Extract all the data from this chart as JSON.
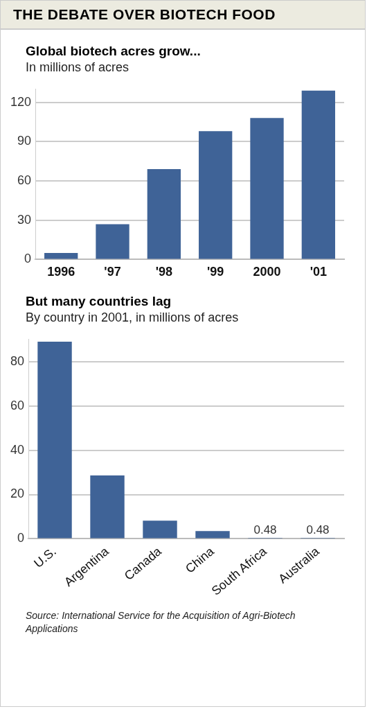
{
  "chart_data": [
    {
      "type": "bar",
      "title": "Global biotech acres grow...",
      "subtitle": "In millions of acres",
      "annotations": [
        "THE DEBATE OVER BIOTECH FOOD"
      ],
      "categories": [
        "1996",
        "'97",
        "'98",
        "'99",
        "2000",
        "'01"
      ],
      "values": [
        5,
        27,
        69,
        98,
        108,
        129
      ],
      "color": "#3f6397",
      "ylim": [
        0,
        130
      ],
      "yticks": [
        0,
        30,
        60,
        90,
        120
      ],
      "grid": "y",
      "legend": false
    },
    {
      "type": "bar",
      "title": "But many countries lag",
      "subtitle": "By country in 2001, in millions of acres",
      "annotations": [
        "Source: International Service for the Acquisition of Agri-Biotech Applications"
      ],
      "categories": [
        "U.S.",
        "Argentina",
        "Canada",
        "China",
        "South Africa",
        "Australia"
      ],
      "values": [
        89,
        28.6,
        8.2,
        3.5,
        0.48,
        0.48
      ],
      "value_labels": [
        null,
        null,
        null,
        null,
        "0.48",
        "0.48"
      ],
      "color": "#3f6397",
      "ylim": [
        0,
        90
      ],
      "yticks": [
        0,
        20,
        40,
        60,
        80
      ],
      "grid": "y",
      "legend": false
    }
  ]
}
